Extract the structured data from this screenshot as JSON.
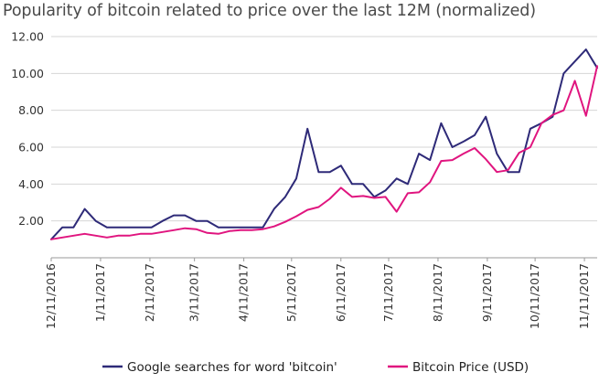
{
  "title": "Popularity of bitcoin related to price over the last 12M (normalized)",
  "chart_data": {
    "type": "line",
    "title": "Popularity of bitcoin related to price over the last 12M (normalized)",
    "xlabel": "",
    "ylabel": "",
    "ylim": [
      0,
      12
    ],
    "yticks": [
      "2.00",
      "4.00",
      "6.00",
      "8.00",
      "10.00",
      "12.00"
    ],
    "x_tick_labels": [
      "12/11/2016",
      "1/11/2017",
      "2/11/2017",
      "3/11/2017",
      "4/11/2017",
      "5/11/2017",
      "6/11/2017",
      "7/11/2017",
      "8/11/2017",
      "9/11/2017",
      "10/11/2017",
      "11/11/2017"
    ],
    "grid": "horizontal",
    "legend_position": "bottom",
    "series": [
      {
        "name": "Google searches for word 'bitcoin'",
        "color": "#2e2a78",
        "x": [
          "2016-12-11",
          "2016-12-18",
          "2016-12-25",
          "2017-01-01",
          "2017-01-08",
          "2017-01-15",
          "2017-01-22",
          "2017-01-29",
          "2017-02-05",
          "2017-02-12",
          "2017-02-19",
          "2017-02-26",
          "2017-03-05",
          "2017-03-12",
          "2017-03-19",
          "2017-03-26",
          "2017-04-02",
          "2017-04-09",
          "2017-04-16",
          "2017-04-23",
          "2017-04-30",
          "2017-05-07",
          "2017-05-14",
          "2017-05-21",
          "2017-05-28",
          "2017-06-04",
          "2017-06-11",
          "2017-06-18",
          "2017-06-25",
          "2017-07-02",
          "2017-07-09",
          "2017-07-16",
          "2017-07-23",
          "2017-07-30",
          "2017-08-06",
          "2017-08-13",
          "2017-08-20",
          "2017-08-27",
          "2017-09-03",
          "2017-09-10",
          "2017-09-17",
          "2017-09-24",
          "2017-10-01",
          "2017-10-08",
          "2017-10-15",
          "2017-10-22",
          "2017-10-29",
          "2017-11-05",
          "2017-11-12",
          "2017-11-19"
        ],
        "values": [
          1.0,
          1.65,
          1.65,
          2.65,
          2.0,
          1.65,
          1.65,
          1.65,
          1.65,
          1.65,
          2.0,
          2.3,
          2.3,
          2.0,
          2.0,
          1.65,
          1.65,
          1.65,
          1.65,
          1.65,
          2.65,
          3.3,
          4.3,
          7.0,
          4.65,
          4.65,
          5.0,
          4.0,
          4.0,
          3.3,
          3.65,
          4.3,
          4.0,
          5.65,
          5.3,
          7.3,
          6.0,
          6.3,
          6.65,
          7.65,
          5.65,
          4.65,
          4.65,
          7.0,
          7.3,
          7.65,
          10.0,
          10.65,
          11.3,
          10.3
        ]
      },
      {
        "name": "Bitcoin Price (USD)",
        "color": "#e0157f",
        "x": [
          "2016-12-11",
          "2016-12-18",
          "2016-12-25",
          "2017-01-01",
          "2017-01-08",
          "2017-01-15",
          "2017-01-22",
          "2017-01-29",
          "2017-02-05",
          "2017-02-12",
          "2017-02-19",
          "2017-02-26",
          "2017-03-05",
          "2017-03-12",
          "2017-03-19",
          "2017-03-26",
          "2017-04-02",
          "2017-04-09",
          "2017-04-16",
          "2017-04-23",
          "2017-04-30",
          "2017-05-07",
          "2017-05-14",
          "2017-05-21",
          "2017-05-28",
          "2017-06-04",
          "2017-06-11",
          "2017-06-18",
          "2017-06-25",
          "2017-07-02",
          "2017-07-09",
          "2017-07-16",
          "2017-07-23",
          "2017-07-30",
          "2017-08-06",
          "2017-08-13",
          "2017-08-20",
          "2017-08-27",
          "2017-09-03",
          "2017-09-10",
          "2017-09-17",
          "2017-09-24",
          "2017-10-01",
          "2017-10-08",
          "2017-10-15",
          "2017-10-22",
          "2017-10-29",
          "2017-11-05",
          "2017-11-12",
          "2017-11-19"
        ],
        "values": [
          1.0,
          1.1,
          1.2,
          1.3,
          1.2,
          1.1,
          1.2,
          1.2,
          1.3,
          1.3,
          1.4,
          1.5,
          1.6,
          1.55,
          1.35,
          1.3,
          1.45,
          1.5,
          1.5,
          1.55,
          1.7,
          1.95,
          2.25,
          2.6,
          2.75,
          3.2,
          3.8,
          3.3,
          3.35,
          3.25,
          3.3,
          2.5,
          3.5,
          3.55,
          4.1,
          5.25,
          5.3,
          5.65,
          5.95,
          5.35,
          4.65,
          4.75,
          5.7,
          6.0,
          7.3,
          7.75,
          8.0,
          9.6,
          7.7,
          10.4
        ]
      }
    ]
  }
}
